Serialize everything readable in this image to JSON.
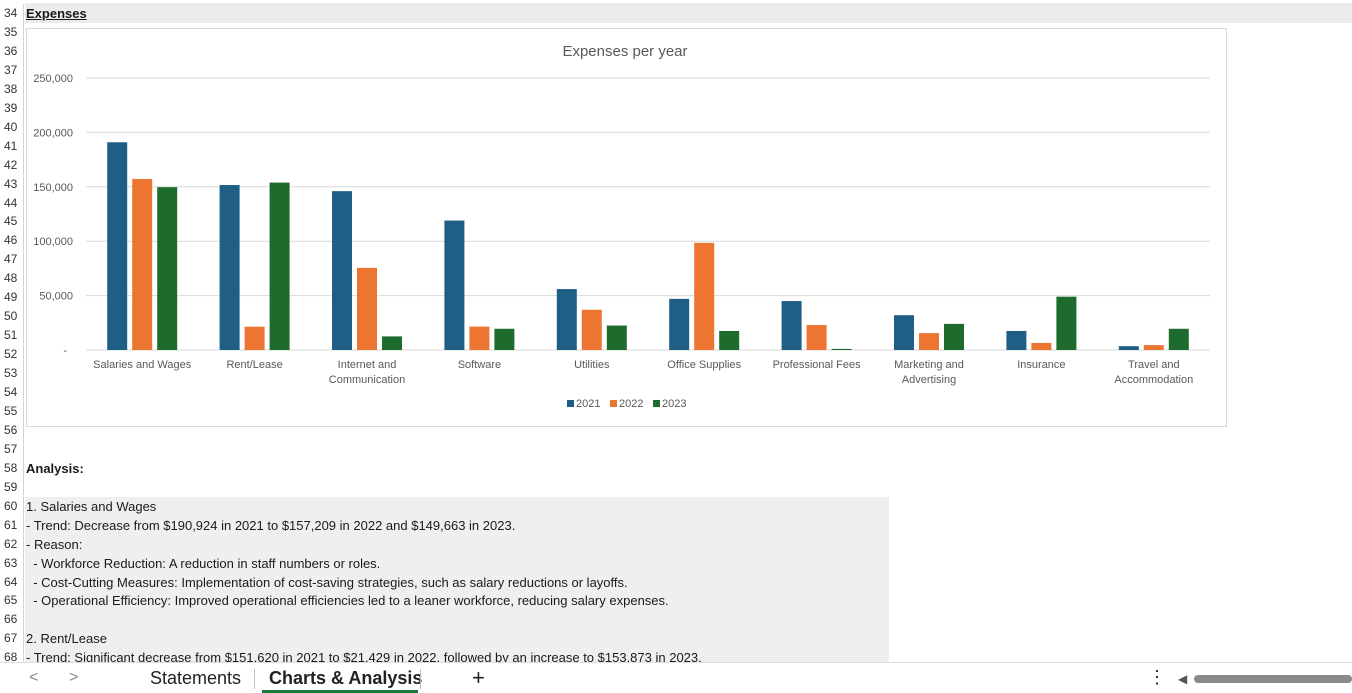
{
  "sheet": {
    "rows": [
      {
        "num": "34",
        "text": "Expenses",
        "style": "hdr"
      },
      {
        "num": "35",
        "text": ""
      },
      {
        "num": "36",
        "text": ""
      },
      {
        "num": "37",
        "text": ""
      },
      {
        "num": "38",
        "text": ""
      },
      {
        "num": "39",
        "text": ""
      },
      {
        "num": "40",
        "text": ""
      },
      {
        "num": "41",
        "text": ""
      },
      {
        "num": "42",
        "text": ""
      },
      {
        "num": "43",
        "text": ""
      },
      {
        "num": "44",
        "text": ""
      },
      {
        "num": "45",
        "text": ""
      },
      {
        "num": "46",
        "text": ""
      },
      {
        "num": "47",
        "text": ""
      },
      {
        "num": "48",
        "text": ""
      },
      {
        "num": "49",
        "text": ""
      },
      {
        "num": "50",
        "text": ""
      },
      {
        "num": "51",
        "text": ""
      },
      {
        "num": "52",
        "text": ""
      },
      {
        "num": "53",
        "text": ""
      },
      {
        "num": "54",
        "text": ""
      },
      {
        "num": "55",
        "text": ""
      },
      {
        "num": "56",
        "text": ""
      },
      {
        "num": "57",
        "text": ""
      },
      {
        "num": "58",
        "text": "Analysis:",
        "style": "bold"
      },
      {
        "num": "59",
        "text": ""
      },
      {
        "num": "60",
        "text": "1. Salaries and Wages"
      },
      {
        "num": "61",
        "text": "- Trend: Decrease from $190,924 in 2021 to $157,209 in 2022 and $149,663 in 2023."
      },
      {
        "num": "62",
        "text": "- Reason:"
      },
      {
        "num": "63",
        "text": "  - Workforce Reduction: A reduction in staff numbers or roles."
      },
      {
        "num": "64",
        "text": "  - Cost-Cutting Measures: Implementation of cost-saving strategies, such as salary reductions or layoffs."
      },
      {
        "num": "65",
        "text": "  - Operational Efficiency: Improved operational efficiencies led to a leaner workforce, reducing salary expenses."
      },
      {
        "num": "66",
        "text": ""
      },
      {
        "num": "67",
        "text": "2. Rent/Lease"
      },
      {
        "num": "68",
        "text": "- Trend: Significant decrease from $151,620 in 2021 to $21,429 in 2022, followed by an increase to $153,873 in 2023."
      }
    ]
  },
  "chart_data": {
    "type": "bar",
    "title": "Expenses per year",
    "categories": [
      [
        "Salaries and Wages"
      ],
      [
        "Rent/Lease"
      ],
      [
        "Internet and",
        "Communication"
      ],
      [
        "Software"
      ],
      [
        "Utilities"
      ],
      [
        "Office Supplies"
      ],
      [
        "Professional Fees"
      ],
      [
        "Marketing and",
        "Advertising"
      ],
      [
        "Insurance"
      ],
      [
        "Travel and",
        "Accommodation"
      ]
    ],
    "series": [
      {
        "name": "2021",
        "color": "#1f5f86",
        "values": [
          190924,
          151620,
          146000,
          119000,
          56000,
          47000,
          45000,
          32000,
          17500,
          3500
        ]
      },
      {
        "name": "2022",
        "color": "#ed7532",
        "values": [
          157209,
          21429,
          75500,
          21500,
          37000,
          98500,
          23000,
          15500,
          6500,
          4500
        ]
      },
      {
        "name": "2023",
        "color": "#1e6b2e",
        "values": [
          149663,
          153873,
          12500,
          19500,
          22500,
          17500,
          1000,
          24000,
          49000,
          19500
        ]
      }
    ],
    "ylim": [
      0,
      250000
    ],
    "yticks": [
      "-",
      "50,000",
      "100,000",
      "150,000",
      "200,000",
      "250,000"
    ],
    "grid": true,
    "legend_position": "bottom"
  },
  "tabs": {
    "prev_label": "<",
    "next_label": ">",
    "items": [
      "Statements",
      "Charts & Analysis"
    ],
    "active": "Charts & Analysis",
    "add_label": "+",
    "more_label": "⋮",
    "scroll_left_label": "◀"
  }
}
